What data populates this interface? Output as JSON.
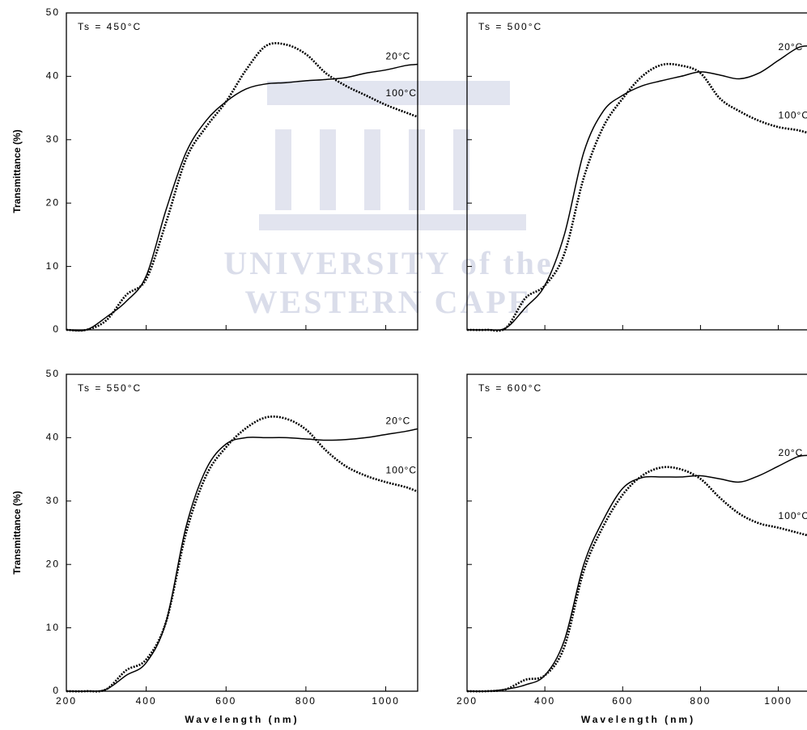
{
  "watermark": [
    "UNIVERSITY of the",
    "WESTERN CAPE"
  ],
  "chart_data": [
    {
      "type": "line",
      "annotation": "Ts = 450°C",
      "ylabel": "Transmittance (%)",
      "show_xtick_labels": false,
      "show_ytick_labels": true,
      "x": [
        200,
        250,
        300,
        350,
        400,
        450,
        500,
        550,
        600,
        650,
        700,
        750,
        800,
        850,
        900,
        950,
        1000,
        1050,
        1080
      ],
      "series": [
        {
          "name": "20°C",
          "color": "#000000",
          "dashed": false,
          "values": [
            0,
            0,
            2,
            4.5,
            8.5,
            19,
            28,
            33,
            36,
            38,
            38.8,
            39,
            39.3,
            39.5,
            39.8,
            40.5,
            41,
            41.7,
            41.9
          ]
        },
        {
          "name": "100°C",
          "color": "#000000",
          "dashed": true,
          "values": [
            0,
            0,
            1.5,
            5.5,
            8,
            17,
            27,
            32,
            36,
            41,
            44.8,
            45,
            43.5,
            40.5,
            38.5,
            37,
            35.5,
            34.3,
            33.6
          ]
        }
      ],
      "xlim": [
        200,
        1080
      ],
      "xticks": [
        200,
        400,
        600,
        800,
        1000
      ],
      "ylim": [
        0,
        50
      ],
      "yticks": [
        0,
        10,
        20,
        30,
        40,
        50
      ]
    },
    {
      "type": "line",
      "annotation": "Ts = 500°C",
      "show_xtick_labels": false,
      "show_ytick_labels": false,
      "x": [
        200,
        250,
        300,
        350,
        400,
        450,
        500,
        550,
        600,
        650,
        700,
        750,
        800,
        850,
        900,
        950,
        1000,
        1050,
        1080
      ],
      "series": [
        {
          "name": "20°C",
          "color": "#000000",
          "dashed": false,
          "values": [
            0,
            0,
            0.3,
            3.5,
            7,
            15,
            28,
            34.5,
            37,
            38.5,
            39.3,
            40,
            40.7,
            40.2,
            39.6,
            40.5,
            42.5,
            44.5,
            44.8
          ]
        },
        {
          "name": "100°C",
          "color": "#000000",
          "dashed": true,
          "values": [
            0,
            0,
            0.3,
            5,
            7,
            12,
            24,
            32,
            36.5,
            40,
            41.8,
            41.7,
            40.5,
            36.5,
            34.5,
            33,
            32,
            31.5,
            31
          ]
        }
      ],
      "xlim": [
        200,
        1080
      ],
      "xticks": [
        200,
        400,
        600,
        800,
        1000
      ],
      "ylim": [
        0,
        50
      ],
      "yticks": [
        0,
        10,
        20,
        30,
        40,
        50
      ]
    },
    {
      "type": "line",
      "annotation": "Ts = 550°C",
      "ylabel": "Transmittance (%)",
      "xlabel": "Wavelength (nm)",
      "show_xtick_labels": true,
      "show_ytick_labels": true,
      "x": [
        200,
        250,
        300,
        350,
        400,
        450,
        500,
        550,
        600,
        650,
        700,
        750,
        800,
        850,
        900,
        950,
        1000,
        1050,
        1080
      ],
      "series": [
        {
          "name": "20°C",
          "color": "#000000",
          "dashed": false,
          "values": [
            0,
            0,
            0.3,
            2.5,
            4.5,
            11,
            26,
            35,
            39,
            40,
            40,
            40,
            39.8,
            39.6,
            39.7,
            40,
            40.5,
            41,
            41.4
          ]
        },
        {
          "name": "100°C",
          "color": "#000000",
          "dashed": true,
          "values": [
            0,
            0,
            0.3,
            3.3,
            5,
            11,
            25,
            34,
            38.5,
            41.5,
            43.2,
            43,
            41.3,
            38,
            35.5,
            34,
            33,
            32.2,
            31.5
          ]
        }
      ],
      "xlim": [
        200,
        1080
      ],
      "xticks": [
        200,
        400,
        600,
        800,
        1000
      ],
      "ylim": [
        0,
        50
      ],
      "yticks": [
        0,
        10,
        20,
        30,
        40,
        50
      ]
    },
    {
      "type": "line",
      "annotation": "Ts = 600°C",
      "xlabel": "Wavelength (nm)",
      "show_xtick_labels": true,
      "show_ytick_labels": false,
      "x": [
        200,
        250,
        300,
        350,
        400,
        450,
        500,
        550,
        600,
        650,
        700,
        750,
        800,
        850,
        900,
        950,
        1000,
        1050,
        1080
      ],
      "series": [
        {
          "name": "20°C",
          "color": "#000000",
          "dashed": false,
          "values": [
            0,
            0,
            0.3,
            1,
            2.5,
            8,
            20,
            27,
            32,
            33.7,
            33.8,
            33.8,
            34,
            33.5,
            33,
            34,
            35.5,
            37,
            37.2
          ]
        },
        {
          "name": "100°C",
          "color": "#000000",
          "dashed": true,
          "values": [
            0,
            0,
            0.3,
            1.8,
            2.5,
            7,
            19,
            26,
            31,
            34,
            35.3,
            35,
            33.5,
            30.5,
            28,
            26.5,
            25.8,
            25,
            24.5
          ]
        }
      ],
      "xlim": [
        200,
        1080
      ],
      "xticks": [
        200,
        400,
        600,
        800,
        1000
      ],
      "ylim": [
        0,
        50
      ],
      "yticks": [
        0,
        10,
        20,
        30,
        40,
        50
      ]
    }
  ]
}
